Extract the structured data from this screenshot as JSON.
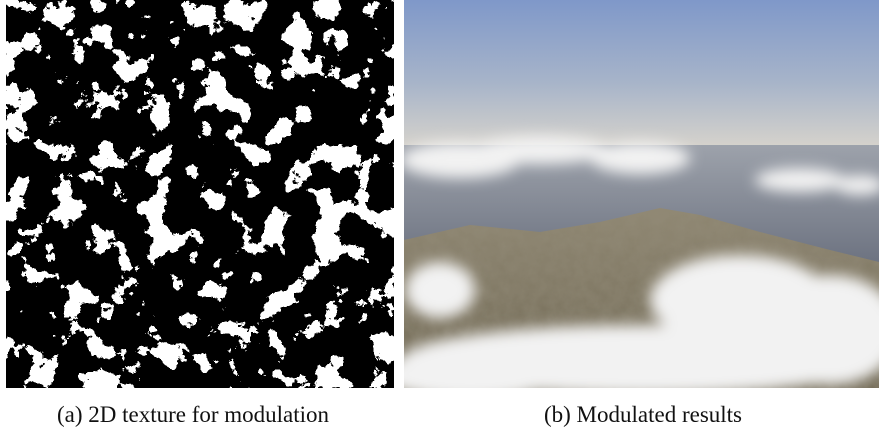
{
  "figure": {
    "panels": [
      {
        "caption": "(a) 2D texture for modulation"
      },
      {
        "caption": "(b) Modulated results"
      }
    ]
  }
}
